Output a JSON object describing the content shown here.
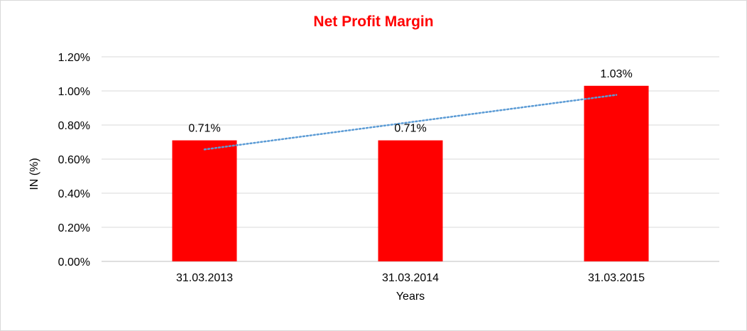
{
  "chart_data": {
    "type": "bar",
    "title": "Net Profit Margin",
    "xlabel": "Years",
    "ylabel": "IN (%)",
    "categories": [
      "31.03.2013",
      "31.03.2014",
      "31.03.2015"
    ],
    "values": [
      0.71,
      0.71,
      1.03
    ],
    "data_labels": [
      "0.71%",
      "0.71%",
      "1.03%"
    ],
    "ylim": [
      0,
      1.2
    ],
    "yticks": [
      0,
      0.2,
      0.4,
      0.6,
      0.8,
      1.0,
      1.2
    ],
    "ytick_labels": [
      "0.00%",
      "0.20%",
      "0.40%",
      "0.60%",
      "0.80%",
      "1.00%",
      "1.20%"
    ],
    "trendline": {
      "type": "linear",
      "style": "dotted",
      "color": "#5b9bd5"
    },
    "grid": true,
    "legend": "none",
    "bar_color": "#ff0000",
    "title_color": "#ff0000"
  }
}
